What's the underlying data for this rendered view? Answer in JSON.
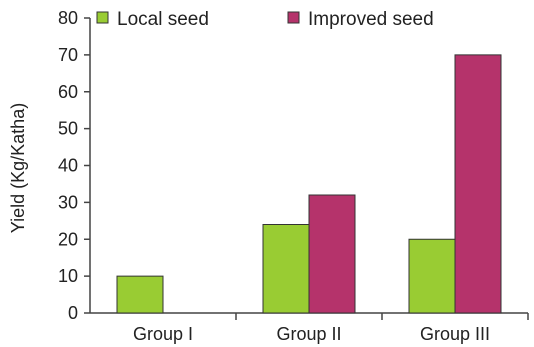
{
  "chart_data": {
    "type": "bar",
    "title": "",
    "xlabel": "",
    "ylabel": "Yield (Kg/Katha)",
    "ylim": [
      0,
      80
    ],
    "yticks": [
      0,
      10,
      20,
      30,
      40,
      50,
      60,
      70,
      80
    ],
    "grid": false,
    "legend_position": "top",
    "categories": [
      "Group I",
      "Group II",
      "Group III"
    ],
    "series": [
      {
        "name": "Local seed",
        "color": "#99cc33",
        "values": [
          10,
          24,
          20
        ]
      },
      {
        "name": "Improved seed",
        "color": "#b5336b",
        "values": [
          0,
          32,
          70
        ]
      }
    ]
  }
}
